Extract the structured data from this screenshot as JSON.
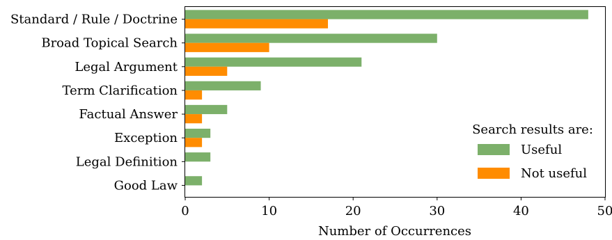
{
  "chart_data": {
    "type": "bar",
    "orientation": "horizontal",
    "categories": [
      "Standard / Rule / Doctrine",
      "Broad Topical Search",
      "Legal Argument",
      "Term Clarification",
      "Factual Answer",
      "Exception",
      "Legal Definition",
      "Good Law"
    ],
    "series": [
      {
        "name": "Useful",
        "color": "#7cb06a",
        "values": [
          48,
          30,
          21,
          9,
          5,
          3,
          3,
          2
        ]
      },
      {
        "name": "Not useful",
        "color": "#ff8c00",
        "values": [
          17,
          10,
          5,
          2,
          2,
          2,
          0,
          0
        ]
      }
    ],
    "xlabel": "Number of Occurrences",
    "ylabel": "",
    "xlim": [
      0,
      50
    ],
    "xticks": [
      "0",
      "10",
      "20",
      "30",
      "40",
      "50"
    ],
    "legend": {
      "title": "Search results are:",
      "placement": "lower-right"
    },
    "grid": false
  }
}
